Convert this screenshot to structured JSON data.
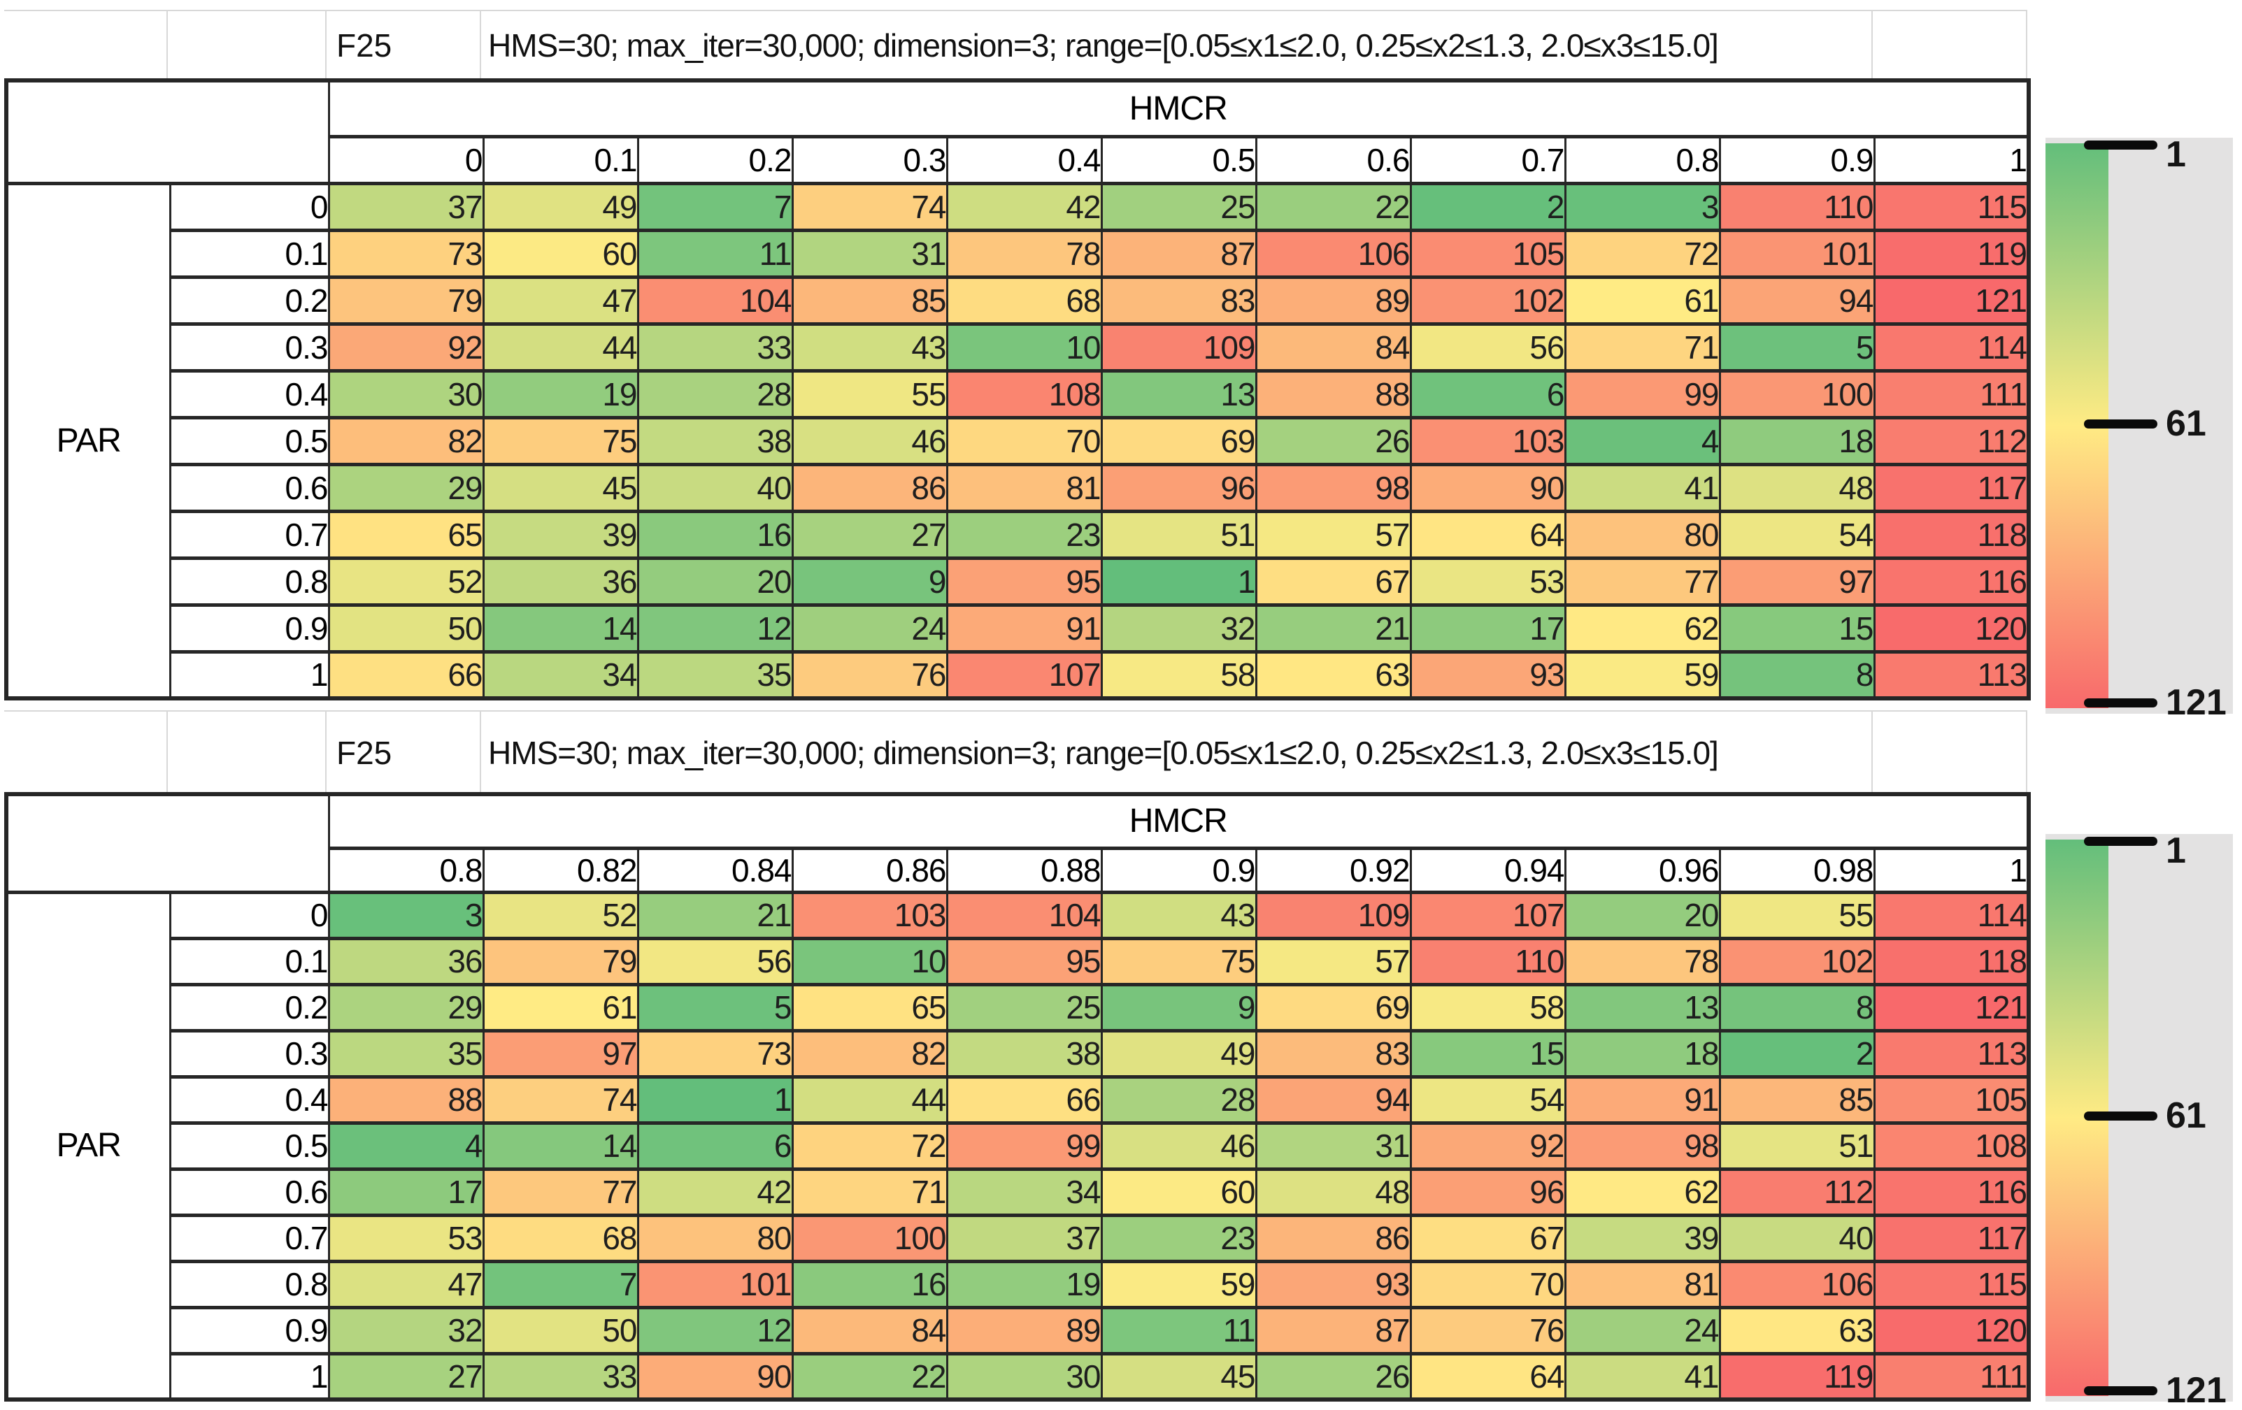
{
  "colors": {
    "cell_border": "#262626",
    "gridline": "#d8d8d8",
    "legend_panel": "#e3e2e2",
    "text": "#1e1e1e"
  },
  "color_scale": {
    "min": 1,
    "mid": 61,
    "max": 121,
    "min_color": "#63be7b",
    "mid_color": "#ffeb84",
    "max_color": "#f8696b"
  },
  "legend": {
    "ticks": [
      "1",
      "61",
      "121"
    ]
  },
  "sheets": [
    {
      "function_label": "F25",
      "title": "HMS=30; max_iter=30,000; dimension=3; range=[0.05≤x1≤2.0, 0.25≤x2≤1.3, 2.0≤x3≤15.0]",
      "col_axis": "HMCR",
      "row_axis": "PAR"
    },
    {
      "function_label": "F25",
      "title": "HMS=30; max_iter=30,000; dimension=3; range=[0.05≤x1≤2.0, 0.25≤x2≤1.3, 2.0≤x3≤15.0]",
      "col_axis": "HMCR",
      "row_axis": "PAR"
    }
  ],
  "chart_data": [
    {
      "type": "heatmap",
      "title": "F25 — HMS=30; max_iter=30,000; dimension=3; range=[0.05≤x1≤2.0, 0.25≤x2≤1.3, 2.0≤x3≤15.0]",
      "xlabel": "HMCR",
      "ylabel": "PAR",
      "x": [
        "0",
        "0.1",
        "0.2",
        "0.3",
        "0.4",
        "0.5",
        "0.6",
        "0.7",
        "0.8",
        "0.9",
        "1"
      ],
      "y": [
        "0",
        "0.1",
        "0.2",
        "0.3",
        "0.4",
        "0.5",
        "0.6",
        "0.7",
        "0.8",
        "0.9",
        "1"
      ],
      "values": [
        [
          37,
          49,
          7,
          74,
          42,
          25,
          22,
          2,
          3,
          110,
          115
        ],
        [
          73,
          60,
          11,
          31,
          78,
          87,
          106,
          105,
          72,
          101,
          119
        ],
        [
          79,
          47,
          104,
          85,
          68,
          83,
          89,
          102,
          61,
          94,
          121
        ],
        [
          92,
          44,
          33,
          43,
          10,
          109,
          84,
          56,
          71,
          5,
          114
        ],
        [
          30,
          19,
          28,
          55,
          108,
          13,
          88,
          6,
          99,
          100,
          111
        ],
        [
          82,
          75,
          38,
          46,
          70,
          69,
          26,
          103,
          4,
          18,
          112
        ],
        [
          29,
          45,
          40,
          86,
          81,
          96,
          98,
          90,
          41,
          48,
          117
        ],
        [
          65,
          39,
          16,
          27,
          23,
          51,
          57,
          64,
          80,
          54,
          118
        ],
        [
          52,
          36,
          20,
          9,
          95,
          1,
          67,
          53,
          77,
          97,
          116
        ],
        [
          50,
          14,
          12,
          24,
          91,
          32,
          21,
          17,
          62,
          15,
          120
        ],
        [
          66,
          34,
          35,
          76,
          107,
          58,
          63,
          93,
          59,
          8,
          113
        ]
      ],
      "colorbar": {
        "min": 1,
        "mid": 61,
        "max": 121,
        "min_color": "#63be7b",
        "mid_color": "#ffeb84",
        "max_color": "#f8696b",
        "tick_labels": [
          "1",
          "61",
          "121"
        ],
        "position": "right",
        "orientation": "vertical"
      }
    },
    {
      "type": "heatmap",
      "title": "F25 — HMS=30; max_iter=30,000; dimension=3; range=[0.05≤x1≤2.0, 0.25≤x2≤1.3, 2.0≤x3≤15.0]",
      "xlabel": "HMCR",
      "ylabel": "PAR",
      "x": [
        "0.8",
        "0.82",
        "0.84",
        "0.86",
        "0.88",
        "0.9",
        "0.92",
        "0.94",
        "0.96",
        "0.98",
        "1"
      ],
      "y": [
        "0",
        "0.1",
        "0.2",
        "0.3",
        "0.4",
        "0.5",
        "0.6",
        "0.7",
        "0.8",
        "0.9",
        "1"
      ],
      "values": [
        [
          3,
          52,
          21,
          103,
          104,
          43,
          109,
          107,
          20,
          55,
          114
        ],
        [
          36,
          79,
          56,
          10,
          95,
          75,
          57,
          110,
          78,
          102,
          118
        ],
        [
          29,
          61,
          5,
          65,
          25,
          9,
          69,
          58,
          13,
          8,
          121
        ],
        [
          35,
          97,
          73,
          82,
          38,
          49,
          83,
          15,
          18,
          2,
          113
        ],
        [
          88,
          74,
          1,
          44,
          66,
          28,
          94,
          54,
          91,
          85,
          105
        ],
        [
          4,
          14,
          6,
          72,
          99,
          46,
          31,
          92,
          98,
          51,
          108
        ],
        [
          17,
          77,
          42,
          71,
          34,
          60,
          48,
          96,
          62,
          112,
          116
        ],
        [
          53,
          68,
          80,
          100,
          37,
          23,
          86,
          67,
          39,
          40,
          117
        ],
        [
          47,
          7,
          101,
          16,
          19,
          59,
          93,
          70,
          81,
          106,
          115
        ],
        [
          32,
          50,
          12,
          84,
          89,
          11,
          87,
          76,
          24,
          63,
          120
        ],
        [
          27,
          33,
          90,
          22,
          30,
          45,
          26,
          64,
          41,
          119,
          111
        ]
      ],
      "colorbar": {
        "min": 1,
        "mid": 61,
        "max": 121,
        "min_color": "#63be7b",
        "mid_color": "#ffeb84",
        "max_color": "#f8696b",
        "tick_labels": [
          "1",
          "61",
          "121"
        ],
        "position": "right",
        "orientation": "vertical"
      }
    }
  ]
}
